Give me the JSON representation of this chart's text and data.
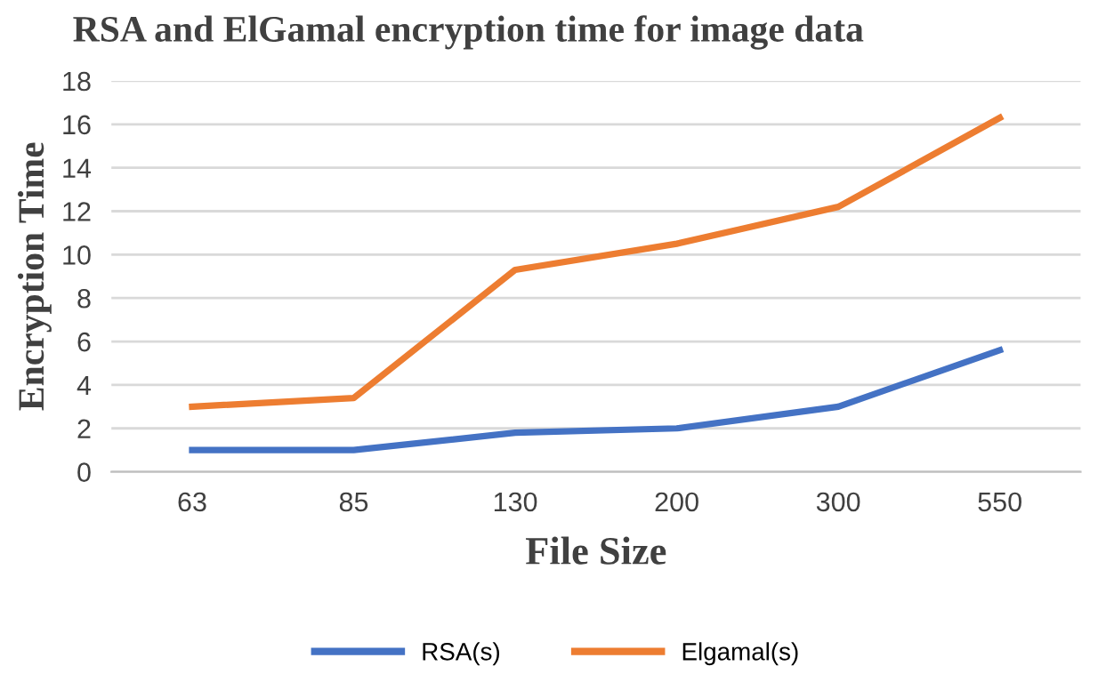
{
  "chart_data": {
    "type": "line",
    "title": "RSA and ElGamal encryption time for image data",
    "xlabel": "File Size",
    "ylabel": "Encryption Time",
    "categories": [
      "63",
      "85",
      "130",
      "200",
      "300",
      "550"
    ],
    "series": [
      {
        "name": "RSA(s)",
        "color": "#4472c4",
        "values": [
          1.0,
          1.0,
          1.8,
          2.0,
          3.0,
          5.6
        ]
      },
      {
        "name": "Elgamal(s)",
        "color": "#ed7d31",
        "values": [
          3.0,
          3.4,
          9.3,
          10.5,
          12.2,
          16.3
        ]
      }
    ],
    "ylim": [
      0,
      18
    ],
    "yticks": [
      0,
      2,
      4,
      6,
      8,
      10,
      12,
      14,
      16,
      18
    ],
    "grid": "y",
    "legend": "bottom",
    "marker": "none",
    "line_style": "solid"
  }
}
